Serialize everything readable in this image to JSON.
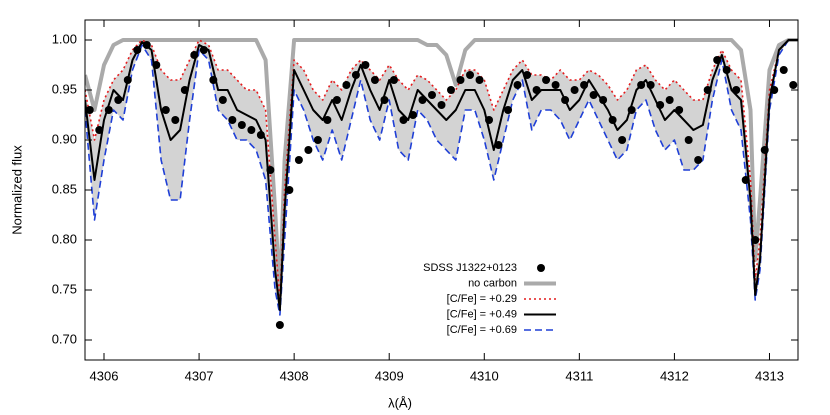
{
  "chart_data": {
    "type": "line",
    "xlabel": "λ(Å)",
    "ylabel": "Normalized flux",
    "xlim": [
      4305.8,
      4313.3
    ],
    "ylim": [
      0.68,
      1.02
    ],
    "xticks": [
      4306,
      4307,
      4308,
      4309,
      4310,
      4311,
      4312,
      4313
    ],
    "yticks": [
      {
        "value": 0.7,
        "label": "0.70"
      },
      0.75,
      {
        "value": 0.8,
        "label": "0.80"
      },
      0.85,
      {
        "value": 0.9,
        "label": "0.90"
      },
      0.95,
      {
        "value": 1,
        "label": "1.00"
      }
    ],
    "band_color": "#d3d3d3",
    "x": [
      4305.8,
      4305.9,
      4306.0,
      4306.1,
      4306.2,
      4306.3,
      4306.4,
      4306.5,
      4306.6,
      4306.7,
      4306.8,
      4306.9,
      4307.0,
      4307.1,
      4307.2,
      4307.3,
      4307.4,
      4307.5,
      4307.6,
      4307.7,
      4307.8,
      4307.85,
      4307.9,
      4308.0,
      4308.1,
      4308.2,
      4308.3,
      4308.4,
      4308.5,
      4308.6,
      4308.7,
      4308.8,
      4308.9,
      4309.0,
      4309.1,
      4309.2,
      4309.3,
      4309.4,
      4309.5,
      4309.6,
      4309.7,
      4309.8,
      4309.9,
      4310.0,
      4310.1,
      4310.2,
      4310.3,
      4310.4,
      4310.5,
      4310.6,
      4310.7,
      4310.8,
      4310.9,
      4311.0,
      4311.1,
      4311.2,
      4311.3,
      4311.4,
      4311.5,
      4311.6,
      4311.7,
      4311.8,
      4311.9,
      4312.0,
      4312.1,
      4312.2,
      4312.3,
      4312.4,
      4312.5,
      4312.6,
      4312.7,
      4312.8,
      4312.85,
      4312.9,
      4313.0,
      4313.1,
      4313.2,
      4313.3
    ],
    "series": [
      {
        "name": "SDSS J1322+0123",
        "color": "#000000",
        "style": "points",
        "x": [
          4305.85,
          4305.95,
          4306.05,
          4306.15,
          4306.25,
          4306.35,
          4306.45,
          4306.55,
          4306.65,
          4306.75,
          4306.85,
          4306.95,
          4307.05,
          4307.15,
          4307.25,
          4307.35,
          4307.45,
          4307.55,
          4307.65,
          4307.75,
          4307.85,
          4307.95,
          4308.05,
          4308.15,
          4308.25,
          4308.35,
          4308.45,
          4308.55,
          4308.65,
          4308.75,
          4308.85,
          4308.95,
          4309.05,
          4309.15,
          4309.25,
          4309.35,
          4309.45,
          4309.55,
          4309.65,
          4309.75,
          4309.85,
          4309.95,
          4310.05,
          4310.15,
          4310.25,
          4310.35,
          4310.45,
          4310.55,
          4310.65,
          4310.75,
          4310.85,
          4310.95,
          4311.05,
          4311.15,
          4311.25,
          4311.35,
          4311.45,
          4311.55,
          4311.65,
          4311.75,
          4311.85,
          4311.95,
          4312.05,
          4312.15,
          4312.25,
          4312.35,
          4312.45,
          4312.55,
          4312.65,
          4312.75,
          4312.85,
          4312.95,
          4313.05,
          4313.15,
          4313.25
        ],
        "values": [
          0.93,
          0.91,
          0.93,
          0.94,
          0.96,
          0.99,
          0.995,
          0.975,
          0.93,
          0.92,
          0.95,
          0.985,
          0.99,
          0.96,
          0.94,
          0.92,
          0.915,
          0.91,
          0.905,
          0.87,
          0.715,
          0.85,
          0.88,
          0.89,
          0.9,
          0.92,
          0.94,
          0.955,
          0.965,
          0.975,
          0.96,
          0.94,
          0.96,
          0.92,
          0.925,
          0.94,
          0.945,
          0.935,
          0.95,
          0.96,
          0.965,
          0.96,
          0.92,
          0.895,
          0.93,
          0.955,
          0.965,
          0.95,
          0.96,
          0.955,
          0.94,
          0.95,
          0.955,
          0.945,
          0.94,
          0.92,
          0.9,
          0.93,
          0.955,
          0.955,
          0.935,
          0.94,
          0.93,
          0.9,
          0.88,
          0.95,
          0.98,
          0.97,
          0.95,
          0.86,
          0.8,
          0.89,
          0.95,
          0.97,
          0.955
        ]
      },
      {
        "name": "no carbon",
        "color": "#aaaaaa",
        "style": "thick",
        "values": [
          0.965,
          0.93,
          0.975,
          0.995,
          1,
          1,
          1,
          1,
          1,
          1,
          1,
          1,
          1,
          1,
          1,
          1,
          1,
          1,
          1,
          0.98,
          0.83,
          0.745,
          0.88,
          1,
          1,
          1,
          1,
          1,
          1,
          1,
          1,
          1,
          1,
          1,
          1,
          1,
          1,
          0.995,
          0.995,
          0.985,
          0.955,
          0.99,
          1,
          1,
          1,
          1,
          1,
          1,
          1,
          1,
          1,
          1,
          1,
          1,
          1,
          1,
          1,
          1,
          1,
          1,
          1,
          1,
          1,
          1,
          1,
          1,
          1,
          1,
          1,
          1,
          0.99,
          0.93,
          0.78,
          0.84,
          0.97,
          0.995,
          1,
          1
        ]
      },
      {
        "name": "[C/Fe] = +0.29",
        "color": "#e41a1c",
        "style": "dotted",
        "band_edge": true,
        "values": [
          0.95,
          0.9,
          0.94,
          0.96,
          0.97,
          0.99,
          1,
          0.995,
          0.97,
          0.96,
          0.96,
          0.98,
          1,
          0.995,
          0.97,
          0.97,
          0.96,
          0.95,
          0.95,
          0.93,
          0.8,
          0.74,
          0.85,
          0.98,
          0.97,
          0.95,
          0.94,
          0.96,
          0.95,
          0.97,
          0.98,
          0.97,
          0.96,
          0.975,
          0.96,
          0.95,
          0.965,
          0.96,
          0.95,
          0.94,
          0.95,
          0.97,
          0.97,
          0.96,
          0.93,
          0.95,
          0.97,
          0.98,
          0.965,
          0.965,
          0.96,
          0.97,
          0.96,
          0.96,
          0.97,
          0.965,
          0.955,
          0.94,
          0.95,
          0.97,
          0.975,
          0.96,
          0.95,
          0.96,
          0.95,
          0.94,
          0.94,
          0.97,
          0.99,
          0.97,
          0.96,
          0.86,
          0.76,
          0.8,
          0.95,
          0.99,
          1,
          1
        ]
      },
      {
        "name": "[C/Fe] = +0.49",
        "color": "#000000",
        "style": "solid",
        "values": [
          0.94,
          0.86,
          0.92,
          0.95,
          0.94,
          0.98,
          0.998,
          0.99,
          0.93,
          0.9,
          0.91,
          0.96,
          0.995,
          0.99,
          0.95,
          0.95,
          0.93,
          0.925,
          0.92,
          0.9,
          0.77,
          0.73,
          0.83,
          0.97,
          0.95,
          0.93,
          0.92,
          0.94,
          0.92,
          0.95,
          0.975,
          0.95,
          0.93,
          0.96,
          0.93,
          0.92,
          0.95,
          0.94,
          0.93,
          0.92,
          0.93,
          0.95,
          0.95,
          0.93,
          0.89,
          0.93,
          0.96,
          0.97,
          0.94,
          0.95,
          0.95,
          0.95,
          0.93,
          0.94,
          0.96,
          0.945,
          0.93,
          0.91,
          0.92,
          0.95,
          0.96,
          0.94,
          0.92,
          0.93,
          0.92,
          0.91,
          0.915,
          0.96,
          0.985,
          0.95,
          0.94,
          0.84,
          0.745,
          0.78,
          0.94,
          0.99,
          1,
          1
        ]
      },
      {
        "name": "[C/Fe] = +0.69",
        "color": "#1f3fd6",
        "style": "dashed",
        "band_edge": true,
        "values": [
          0.93,
          0.82,
          0.88,
          0.93,
          0.92,
          0.97,
          0.995,
          0.98,
          0.88,
          0.84,
          0.84,
          0.92,
          0.99,
          0.98,
          0.93,
          0.92,
          0.9,
          0.9,
          0.89,
          0.86,
          0.75,
          0.725,
          0.8,
          0.95,
          0.93,
          0.9,
          0.88,
          0.91,
          0.88,
          0.92,
          0.96,
          0.92,
          0.9,
          0.94,
          0.89,
          0.88,
          0.93,
          0.92,
          0.9,
          0.89,
          0.88,
          0.93,
          0.93,
          0.9,
          0.86,
          0.9,
          0.94,
          0.96,
          0.91,
          0.93,
          0.93,
          0.92,
          0.9,
          0.92,
          0.94,
          0.92,
          0.9,
          0.88,
          0.89,
          0.93,
          0.94,
          0.91,
          0.89,
          0.9,
          0.87,
          0.87,
          0.88,
          0.94,
          0.98,
          0.93,
          0.91,
          0.82,
          0.74,
          0.77,
          0.93,
          0.985,
          1,
          1
        ]
      }
    ]
  }
}
